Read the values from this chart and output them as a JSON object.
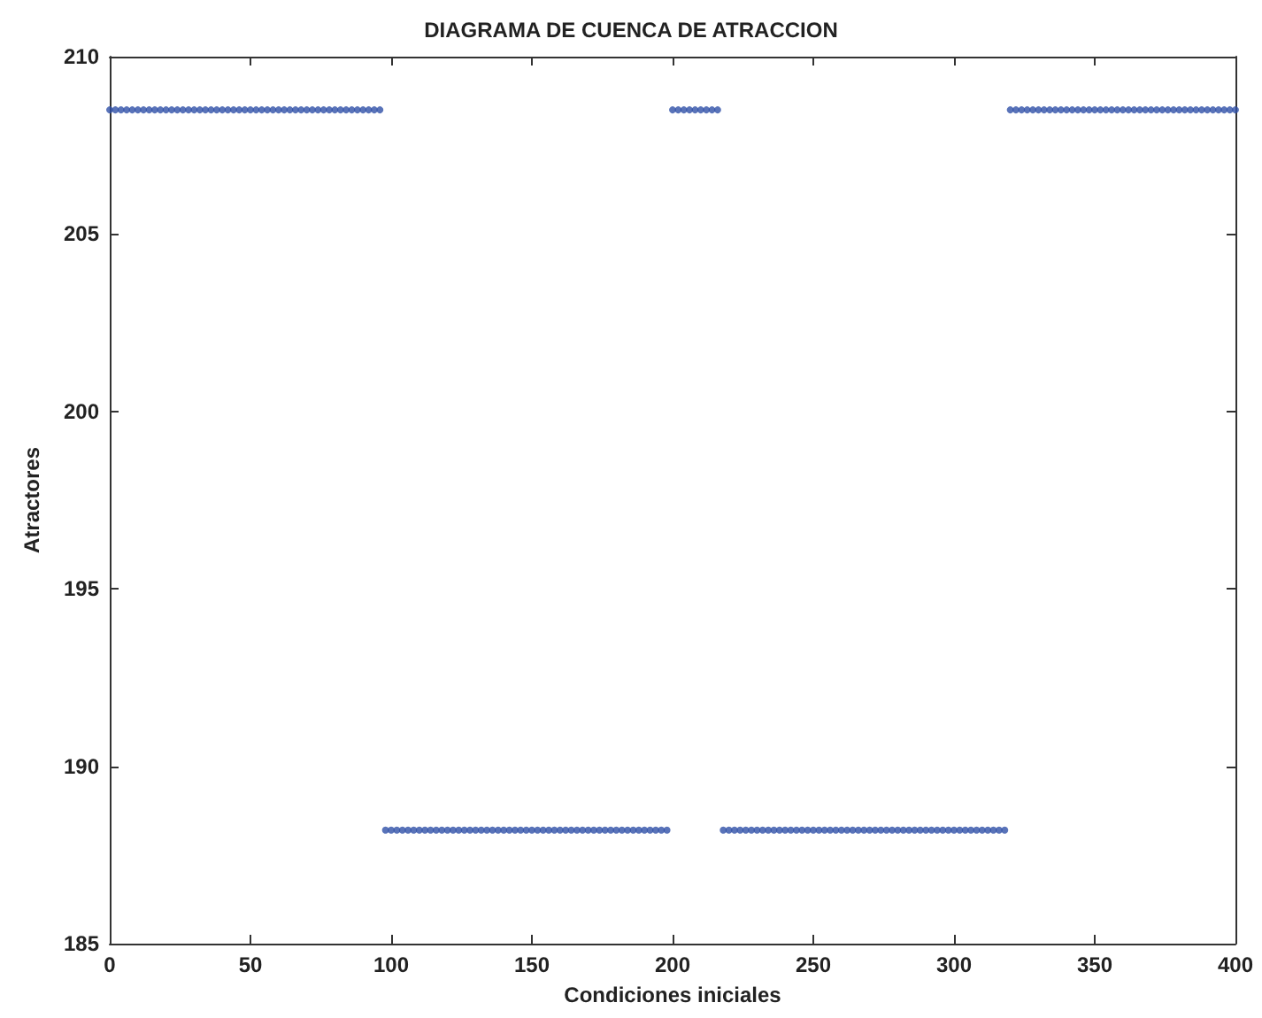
{
  "chart_data": {
    "type": "scatter",
    "title": "DIAGRAMA DE CUENCA DE ATRACCION",
    "xlabel": "Condiciones iniciales",
    "ylabel": "Atractores",
    "xlim": [
      0,
      400
    ],
    "xticks": [
      0,
      50,
      100,
      150,
      200,
      250,
      300,
      350,
      400
    ],
    "ylim": [
      185,
      210
    ],
    "yticks": [
      185,
      190,
      195,
      200,
      205,
      210
    ],
    "marker": "circle",
    "series": [
      {
        "color": "#3050a8",
        "x": [
          0,
          2,
          4,
          6,
          8,
          10,
          12,
          14,
          16,
          18,
          20,
          22,
          24,
          26,
          28,
          30,
          32,
          34,
          36,
          38,
          40,
          42,
          44,
          46,
          48,
          50,
          52,
          54,
          56,
          58,
          60,
          62,
          64,
          66,
          68,
          70,
          72,
          74,
          76,
          78,
          80,
          82,
          84,
          86,
          88,
          90,
          92,
          94,
          96,
          98,
          100,
          102,
          104,
          106,
          108,
          110,
          112,
          114,
          116,
          118,
          120,
          122,
          124,
          126,
          128,
          130,
          132,
          134,
          136,
          138,
          140,
          142,
          144,
          146,
          148,
          150,
          152,
          154,
          156,
          158,
          160,
          162,
          164,
          166,
          168,
          170,
          172,
          174,
          176,
          178,
          180,
          182,
          184,
          186,
          188,
          190,
          192,
          194,
          196,
          198,
          200,
          202,
          204,
          206,
          208,
          210,
          212,
          214,
          216,
          218,
          220,
          222,
          224,
          226,
          228,
          230,
          232,
          234,
          236,
          238,
          240,
          242,
          244,
          246,
          248,
          250,
          252,
          254,
          256,
          258,
          260,
          262,
          264,
          266,
          268,
          270,
          272,
          274,
          276,
          278,
          280,
          282,
          284,
          286,
          288,
          290,
          292,
          294,
          296,
          298,
          300,
          302,
          304,
          306,
          308,
          310,
          312,
          314,
          316,
          318,
          320,
          322,
          324,
          326,
          328,
          330,
          332,
          334,
          336,
          338,
          340,
          342,
          344,
          346,
          348,
          350,
          352,
          354,
          356,
          358,
          360,
          362,
          364,
          366,
          368,
          370,
          372,
          374,
          376,
          378,
          380,
          382,
          384,
          386,
          388,
          390,
          392,
          394,
          396,
          398,
          400
        ],
        "values": [
          208.5,
          208.5,
          208.5,
          208.5,
          208.5,
          208.5,
          208.5,
          208.5,
          208.5,
          208.5,
          208.5,
          208.5,
          208.5,
          208.5,
          208.5,
          208.5,
          208.5,
          208.5,
          208.5,
          208.5,
          208.5,
          208.5,
          208.5,
          208.5,
          208.5,
          208.5,
          208.5,
          208.5,
          208.5,
          208.5,
          208.5,
          208.5,
          208.5,
          208.5,
          208.5,
          208.5,
          208.5,
          208.5,
          208.5,
          208.5,
          208.5,
          208.5,
          208.5,
          208.5,
          208.5,
          208.5,
          208.5,
          208.5,
          208.5,
          188.2,
          188.2,
          188.2,
          188.2,
          188.2,
          188.2,
          188.2,
          188.2,
          188.2,
          188.2,
          188.2,
          188.2,
          188.2,
          188.2,
          188.2,
          188.2,
          188.2,
          188.2,
          188.2,
          188.2,
          188.2,
          188.2,
          188.2,
          188.2,
          188.2,
          188.2,
          188.2,
          188.2,
          188.2,
          188.2,
          188.2,
          188.2,
          188.2,
          188.2,
          188.2,
          188.2,
          188.2,
          188.2,
          188.2,
          188.2,
          188.2,
          188.2,
          188.2,
          188.2,
          188.2,
          188.2,
          188.2,
          188.2,
          188.2,
          188.2,
          188.2,
          208.5,
          208.5,
          208.5,
          208.5,
          208.5,
          208.5,
          208.5,
          208.5,
          208.5,
          188.2,
          188.2,
          188.2,
          188.2,
          188.2,
          188.2,
          188.2,
          188.2,
          188.2,
          188.2,
          188.2,
          188.2,
          188.2,
          188.2,
          188.2,
          188.2,
          188.2,
          188.2,
          188.2,
          188.2,
          188.2,
          188.2,
          188.2,
          188.2,
          188.2,
          188.2,
          188.2,
          188.2,
          188.2,
          188.2,
          188.2,
          188.2,
          188.2,
          188.2,
          188.2,
          188.2,
          188.2,
          188.2,
          188.2,
          188.2,
          188.2,
          188.2,
          188.2,
          188.2,
          188.2,
          188.2,
          188.2,
          188.2,
          188.2,
          188.2,
          188.2,
          208.5,
          208.5,
          208.5,
          208.5,
          208.5,
          208.5,
          208.5,
          208.5,
          208.5,
          208.5,
          208.5,
          208.5,
          208.5,
          208.5,
          208.5,
          208.5,
          208.5,
          208.5,
          208.5,
          208.5,
          208.5,
          208.5,
          208.5,
          208.5,
          208.5,
          208.5,
          208.5,
          208.5,
          208.5,
          208.5,
          208.5,
          208.5,
          208.5,
          208.5,
          208.5,
          208.5,
          208.5,
          208.5,
          208.5,
          208.5,
          208.5
        ]
      }
    ]
  }
}
